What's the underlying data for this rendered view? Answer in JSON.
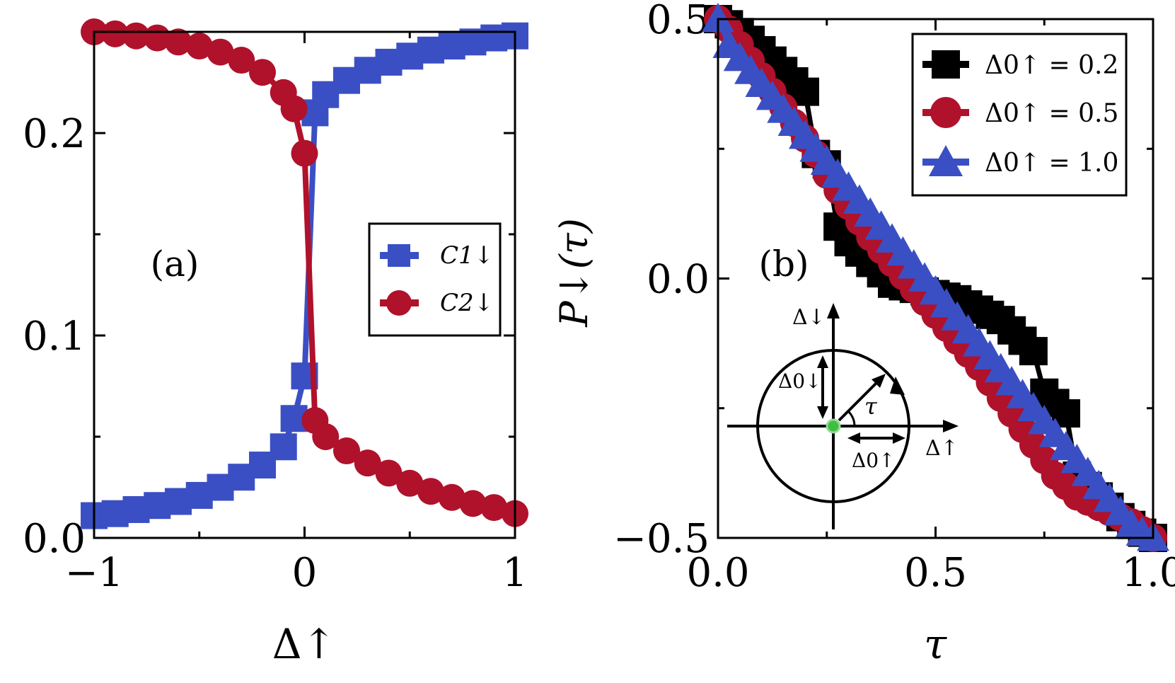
{
  "colors": {
    "blue": "#3b4fc4",
    "red": "#b0112b",
    "black": "#000000",
    "green": "#3fbf3f"
  },
  "chart_data": [
    {
      "type": "line",
      "panel_label": "(a)",
      "xlabel": "Δ↑",
      "ylabel": "",
      "xlim": [
        -1,
        1
      ],
      "ylim": [
        0,
        0.25
      ],
      "xticks": [
        -1,
        0,
        1
      ],
      "xtick_labels": [
        "−1",
        "0",
        "1"
      ],
      "yticks": [
        0,
        0.1,
        0.2
      ],
      "ytick_labels": [
        "0.0",
        "0.1",
        "0.2"
      ],
      "legend_position": "center-right",
      "series": [
        {
          "name": "C1↓",
          "color": "#3b4fc4",
          "marker": "square",
          "x": [
            -1.0,
            -0.9,
            -0.8,
            -0.7,
            -0.6,
            -0.5,
            -0.4,
            -0.3,
            -0.2,
            -0.1,
            -0.05,
            0.0,
            0.05,
            0.1,
            0.2,
            0.3,
            0.4,
            0.5,
            0.6,
            0.7,
            0.8,
            0.9,
            1.0
          ],
          "y": [
            0.011,
            0.012,
            0.014,
            0.016,
            0.018,
            0.021,
            0.025,
            0.03,
            0.036,
            0.045,
            0.059,
            0.08,
            0.21,
            0.219,
            0.226,
            0.231,
            0.235,
            0.238,
            0.241,
            0.243,
            0.245,
            0.247,
            0.248
          ]
        },
        {
          "name": "C2↓",
          "color": "#b0112b",
          "marker": "circle",
          "x": [
            -1.0,
            -0.9,
            -0.8,
            -0.7,
            -0.6,
            -0.5,
            -0.4,
            -0.3,
            -0.2,
            -0.1,
            -0.05,
            0.0,
            0.05,
            0.1,
            0.2,
            0.3,
            0.4,
            0.5,
            0.6,
            0.7,
            0.8,
            0.9,
            1.0
          ],
          "y": [
            0.25,
            0.249,
            0.248,
            0.247,
            0.245,
            0.243,
            0.24,
            0.236,
            0.23,
            0.22,
            0.212,
            0.19,
            0.058,
            0.05,
            0.043,
            0.037,
            0.032,
            0.027,
            0.023,
            0.02,
            0.017,
            0.015,
            0.012
          ]
        }
      ]
    },
    {
      "type": "line",
      "panel_label": "(b)",
      "xlabel": "τ",
      "ylabel": "P↓(τ)",
      "xlim": [
        0,
        1
      ],
      "ylim": [
        -0.5,
        0.5
      ],
      "xticks": [
        0,
        0.5,
        1.0
      ],
      "xtick_labels": [
        "0.0",
        "0.5",
        "1.0"
      ],
      "yticks": [
        -0.5,
        0,
        0.5
      ],
      "ytick_labels": [
        "−0.5",
        "0.0",
        "0.5"
      ],
      "legend_position": "top-right",
      "series": [
        {
          "name": "Δ0↑ = 0.2",
          "color": "#000000",
          "marker": "square",
          "x": [
            0.0,
            0.025,
            0.05,
            0.075,
            0.1,
            0.125,
            0.15,
            0.175,
            0.2,
            0.225,
            0.25,
            0.275,
            0.3,
            0.325,
            0.35,
            0.375,
            0.4,
            0.425,
            0.45,
            0.475,
            0.5,
            0.525,
            0.55,
            0.575,
            0.6,
            0.625,
            0.65,
            0.675,
            0.7,
            0.725,
            0.75,
            0.775,
            0.8,
            0.825,
            0.85,
            0.875,
            0.9,
            0.925,
            0.95,
            0.975,
            1.0
          ],
          "y": [
            0.5,
            0.49,
            0.475,
            0.46,
            0.44,
            0.42,
            0.4,
            0.38,
            0.36,
            0.24,
            0.22,
            0.1,
            0.07,
            0.05,
            0.03,
            0.01,
            -0.01,
            -0.015,
            -0.02,
            -0.025,
            -0.03,
            -0.035,
            -0.04,
            -0.05,
            -0.06,
            -0.07,
            -0.08,
            -0.1,
            -0.12,
            -0.14,
            -0.22,
            -0.24,
            -0.26,
            -0.38,
            -0.4,
            -0.42,
            -0.44,
            -0.46,
            -0.475,
            -0.49,
            -0.5
          ]
        },
        {
          "name": "Δ0↑ = 0.5",
          "color": "#b0112b",
          "marker": "circle",
          "x": [
            0.0,
            0.025,
            0.05,
            0.075,
            0.1,
            0.125,
            0.15,
            0.175,
            0.2,
            0.225,
            0.25,
            0.275,
            0.3,
            0.325,
            0.35,
            0.375,
            0.4,
            0.425,
            0.45,
            0.475,
            0.5,
            0.525,
            0.55,
            0.575,
            0.6,
            0.625,
            0.65,
            0.675,
            0.7,
            0.725,
            0.75,
            0.775,
            0.8,
            0.825,
            0.85,
            0.875,
            0.9,
            0.925,
            0.95,
            0.975,
            1.0
          ],
          "y": [
            0.5,
            0.48,
            0.45,
            0.42,
            0.39,
            0.36,
            0.33,
            0.3,
            0.27,
            0.24,
            0.2,
            0.17,
            0.14,
            0.11,
            0.08,
            0.055,
            0.03,
            0.005,
            -0.02,
            -0.045,
            -0.07,
            -0.095,
            -0.12,
            -0.145,
            -0.17,
            -0.2,
            -0.23,
            -0.26,
            -0.29,
            -0.32,
            -0.35,
            -0.38,
            -0.4,
            -0.42,
            -0.43,
            -0.44,
            -0.45,
            -0.46,
            -0.47,
            -0.485,
            -0.5
          ]
        },
        {
          "name": "Δ0↑ = 1.0",
          "color": "#3b4fc4",
          "marker": "triangle",
          "x": [
            0.0,
            0.025,
            0.05,
            0.075,
            0.1,
            0.125,
            0.15,
            0.175,
            0.2,
            0.225,
            0.25,
            0.275,
            0.3,
            0.325,
            0.35,
            0.375,
            0.4,
            0.425,
            0.45,
            0.475,
            0.5,
            0.525,
            0.55,
            0.575,
            0.6,
            0.625,
            0.65,
            0.675,
            0.7,
            0.725,
            0.75,
            0.775,
            0.8,
            0.825,
            0.85,
            0.875,
            0.9,
            0.925,
            0.95,
            0.975,
            1.0
          ],
          "y": [
            0.5,
            0.45,
            0.425,
            0.4,
            0.375,
            0.35,
            0.325,
            0.3,
            0.275,
            0.25,
            0.225,
            0.2,
            0.175,
            0.15,
            0.125,
            0.1,
            0.075,
            0.05,
            0.025,
            0.0,
            -0.025,
            -0.05,
            -0.075,
            -0.1,
            -0.125,
            -0.15,
            -0.175,
            -0.2,
            -0.225,
            -0.25,
            -0.275,
            -0.3,
            -0.325,
            -0.35,
            -0.375,
            -0.4,
            -0.425,
            -0.45,
            -0.475,
            -0.49,
            -0.5
          ]
        }
      ],
      "inset": {
        "x_axis_label": "Δ↑",
        "y_axis_label": "Δ↓",
        "radius_up_label": "Δ0↑",
        "radius_down_label": "Δ0↓",
        "angle_label": "τ"
      }
    }
  ]
}
